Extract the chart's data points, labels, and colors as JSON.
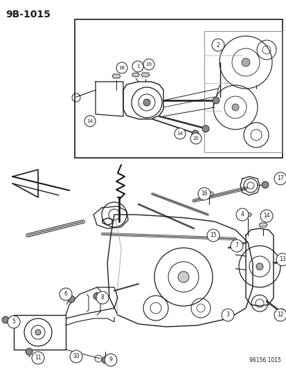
{
  "title_code": "9B-1015",
  "footer_code": "96156 1015",
  "bg_color": "#ffffff",
  "line_color": "#1a1a1a",
  "fig_width": 4.14,
  "fig_height": 5.33,
  "dpi": 100
}
